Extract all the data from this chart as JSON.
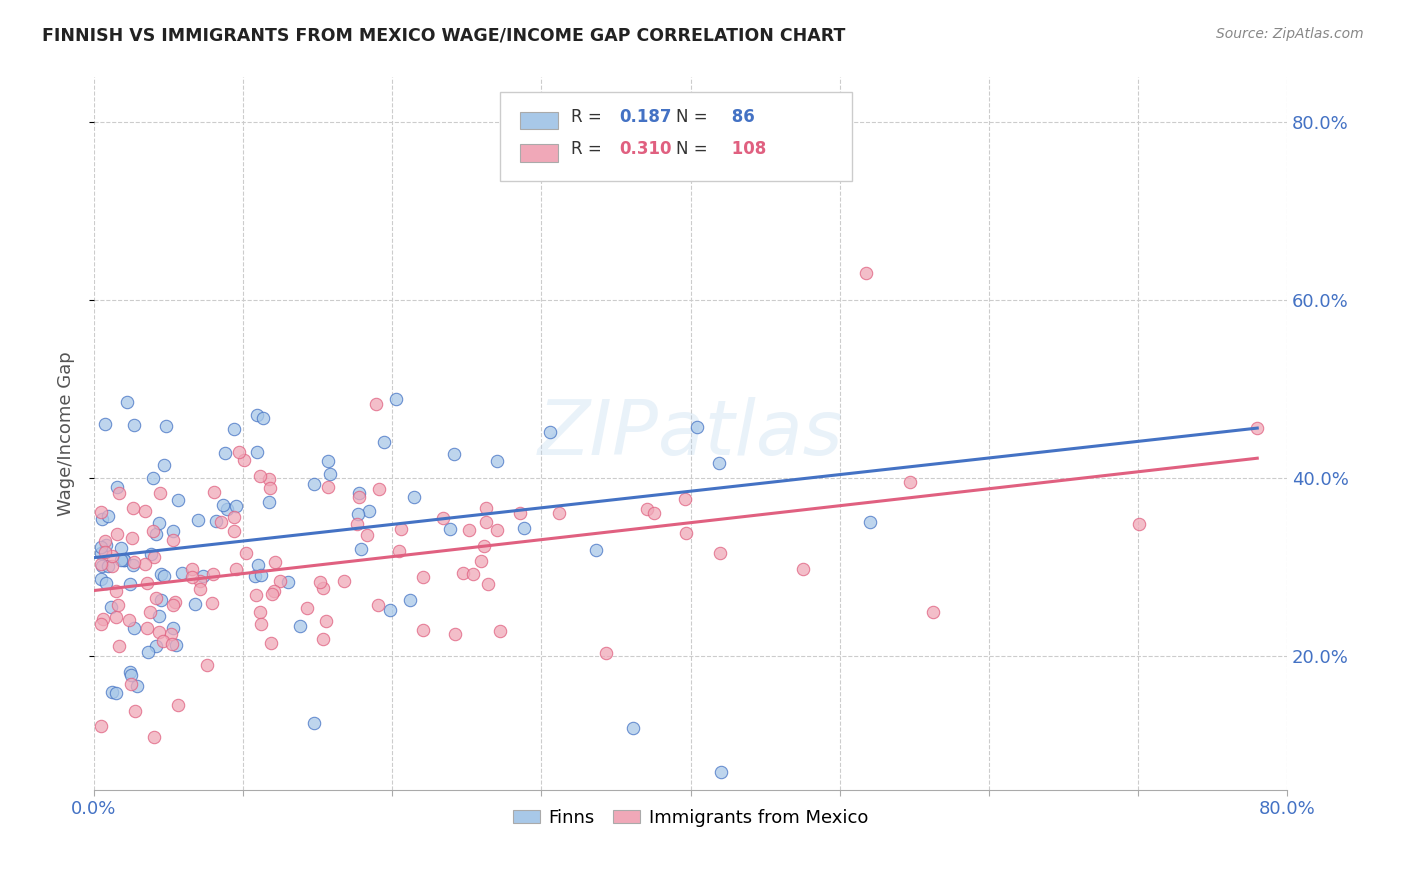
{
  "title": "FINNISH VS IMMIGRANTS FROM MEXICO WAGE/INCOME GAP CORRELATION CHART",
  "source": "Source: ZipAtlas.com",
  "ylabel": "Wage/Income Gap",
  "xmin": 0.0,
  "xmax": 0.8,
  "ymin": 0.05,
  "ymax": 0.85,
  "finns_R": 0.187,
  "finns_N": 86,
  "immigrants_R": 0.31,
  "immigrants_N": 108,
  "legend_label_1": "Finns",
  "legend_label_2": "Immigrants from Mexico",
  "color_finns": "#a8c8e8",
  "color_immigrants": "#f0a8b8",
  "color_finns_line": "#4472c4",
  "color_immigrants_line": "#e06080",
  "background_color": "#ffffff",
  "finns_intercept": 0.325,
  "finns_slope": 0.155,
  "immigrants_intercept": 0.275,
  "immigrants_slope": 0.115
}
